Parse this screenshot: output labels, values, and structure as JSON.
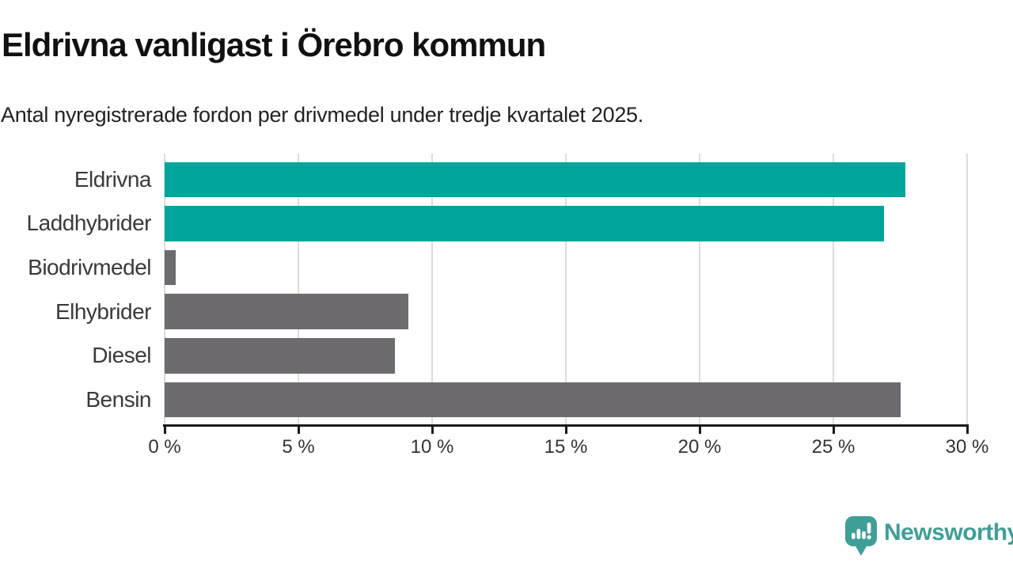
{
  "chart_data": {
    "type": "bar",
    "orientation": "horizontal",
    "title": "Eldrivna vanligast i Örebro kommun",
    "subtitle": "Antal nyregistrerade fordon per drivmedel under tredje kvartalet 2025.",
    "categories": [
      "Eldrivna",
      "Laddhybrider",
      "Biodrivmedel",
      "Elhybrider",
      "Diesel",
      "Bensin"
    ],
    "values": [
      27.7,
      26.9,
      0.4,
      9.1,
      8.6,
      27.5
    ],
    "unit": "%",
    "bar_colors": [
      "#00a49a",
      "#00a49a",
      "#6d6a70",
      "#6d6a70",
      "#6d6a70",
      "#6d6a70"
    ],
    "highlight_color": "#00a49a",
    "default_color": "#6d6a70",
    "x_ticks": [
      {
        "value": 0,
        "label": "0 %"
      },
      {
        "value": 5,
        "label": "5 %"
      },
      {
        "value": 10,
        "label": "10 %"
      },
      {
        "value": 15,
        "label": "15 %"
      },
      {
        "value": 20,
        "label": "20 %"
      },
      {
        "value": 25,
        "label": "25 %"
      },
      {
        "value": 30,
        "label": "30 %"
      }
    ],
    "xlim": [
      0,
      30
    ],
    "grid": "vertical",
    "gridline_color": "#dcdcdc",
    "axis_color": "#1a1a1a",
    "legend": "none"
  },
  "footer": {
    "brand_name": "Newsworthy",
    "brand_color": "#3f9e96",
    "logo_icon": "newsworthy-bubble-barchart-icon"
  }
}
